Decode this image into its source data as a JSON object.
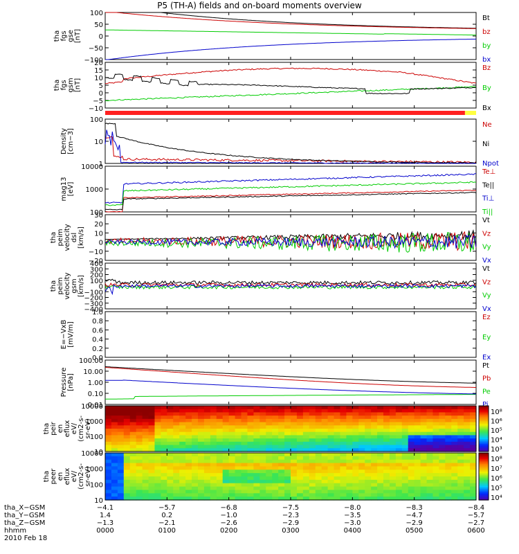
{
  "title": "P5 (TH-A) fields and on-board moments overview",
  "date_label": "2010 Feb 18",
  "colors": {
    "black": "#000000",
    "red": "#cc0000",
    "green": "#00cc00",
    "blue": "#0000cc",
    "bar_red": "#ff2020",
    "bar_yellow": "#ffff40"
  },
  "chart_data": [
    {
      "type": "line",
      "id": "fgs-gse",
      "ylabel": [
        "tha",
        "fgs",
        "gse",
        "[nT]"
      ],
      "ylim": [
        -100,
        100
      ],
      "yticks": [
        "100",
        "50",
        "0",
        "−50",
        "−100"
      ],
      "series": [
        {
          "name": "Bt",
          "color": "#000000"
        },
        {
          "name": "bz",
          "color": "#cc0000"
        },
        {
          "name": "by",
          "color": "#00cc00"
        },
        {
          "name": "bx",
          "color": "#0000cc"
        }
      ]
    },
    {
      "type": "line",
      "id": "fgs-gsm",
      "ylabel": [
        "tha",
        "fgs",
        "gsm",
        "[nT]"
      ],
      "ylim": [
        -10,
        20
      ],
      "yticks": [
        "20",
        "15",
        "10",
        "5",
        "0",
        "−5",
        "−10"
      ],
      "series": [
        {
          "name": "Bz",
          "color": "#cc0000"
        },
        {
          "name": "By",
          "color": "#00cc00"
        },
        {
          "name": "Bx",
          "color": "#000000"
        }
      ]
    },
    {
      "type": "line",
      "id": "density",
      "ylabel": [
        "Density",
        "[cm−3]"
      ],
      "ylim": [
        1,
        100
      ],
      "yscale": "log",
      "yticks": [
        "100",
        "10",
        "1"
      ],
      "series": [
        {
          "name": "Ne",
          "color": "#cc0000"
        },
        {
          "name": "Ni",
          "color": "#000000"
        },
        {
          "name": "Npot",
          "color": "#0000cc"
        }
      ]
    },
    {
      "type": "line",
      "id": "temperature",
      "ylabel": [
        "mag13",
        "[eV]"
      ],
      "ylim": [
        100,
        10000
      ],
      "yscale": "log",
      "yticks": [
        "10000",
        "1000",
        "100"
      ],
      "series": [
        {
          "name": "Te⊥",
          "color": "#cc0000"
        },
        {
          "name": "Te||",
          "color": "#000000"
        },
        {
          "name": "Ti⊥",
          "color": "#0000cc"
        },
        {
          "name": "Ti||",
          "color": "#00cc00"
        }
      ]
    },
    {
      "type": "line",
      "id": "peim-dsl",
      "ylabel": [
        "tha",
        "peim",
        "velocity",
        "dsl",
        "[km/s]"
      ],
      "ylim": [
        -20,
        30
      ],
      "yticks": [
        "30",
        "20",
        "10",
        "0",
        "−10",
        "−20"
      ],
      "series": [
        {
          "name": "Vt",
          "color": "#000000"
        },
        {
          "name": "Vz",
          "color": "#cc0000"
        },
        {
          "name": "Vy",
          "color": "#00cc00"
        },
        {
          "name": "Vx",
          "color": "#0000cc"
        }
      ]
    },
    {
      "type": "line",
      "id": "peim-gsm",
      "ylabel": [
        "tha",
        "peim",
        "velocity",
        "gsm",
        "[km/s]"
      ],
      "ylim": [
        -400,
        400
      ],
      "yticks": [
        "400",
        "300",
        "200",
        "100",
        "0",
        "−100",
        "−200",
        "−300",
        "−400"
      ],
      "series": [
        {
          "name": "Vt",
          "color": "#000000"
        },
        {
          "name": "Vz",
          "color": "#cc0000"
        },
        {
          "name": "Vy",
          "color": "#00cc00"
        },
        {
          "name": "Vx",
          "color": "#0000cc"
        }
      ]
    },
    {
      "type": "line",
      "id": "efield",
      "ylabel": [
        "E=−VxB",
        "[mV/m]"
      ],
      "ylim": [
        0,
        1
      ],
      "yticks": [
        "1.0",
        "0.8",
        "0.6",
        "0.4",
        "0.2",
        "0.0"
      ],
      "series": [
        {
          "name": "Ez",
          "color": "#cc0000"
        },
        {
          "name": "Ey",
          "color": "#00cc00"
        },
        {
          "name": "Ex",
          "color": "#0000cc"
        }
      ]
    },
    {
      "type": "line",
      "id": "pressure",
      "ylabel": [
        "Pressure",
        "[nPa]"
      ],
      "ylim": [
        0.01,
        100
      ],
      "yscale": "log",
      "yticks": [
        "100.00",
        "10.00",
        "1.00",
        "0.10",
        "0.01"
      ],
      "series": [
        {
          "name": "Pt",
          "color": "#000000"
        },
        {
          "name": "Pb",
          "color": "#cc0000"
        },
        {
          "name": "Pe",
          "color": "#00cc00"
        },
        {
          "name": "Pi",
          "color": "#0000cc"
        }
      ]
    },
    {
      "type": "heatmap",
      "id": "peir",
      "ylabel": [
        "tha",
        "peir",
        "en",
        "eflux",
        "eV/",
        "(cm2-s-",
        "sr-eV)"
      ],
      "ylim": [
        10,
        10000
      ],
      "yscale": "log",
      "yticks": [
        "10000",
        "1000",
        "100",
        "10"
      ],
      "colorbar": {
        "labels": [
          "10⁸",
          "10⁶",
          "10⁵",
          "10⁴",
          "10³"
        ]
      }
    },
    {
      "type": "heatmap",
      "id": "peer",
      "ylabel": [
        "tha",
        "peer",
        "en",
        "eflux",
        "eV/",
        "(cm2-s-",
        "sr-eV)"
      ],
      "ylim": [
        10,
        10000
      ],
      "yscale": "log",
      "yticks": [
        "10000",
        "1000",
        "100",
        "10"
      ],
      "colorbar": {
        "labels": [
          "10⁸",
          "10⁷",
          "10⁶",
          "10⁵",
          "10⁴"
        ]
      }
    }
  ],
  "ephemeris": [
    {
      "label": "tha_X−GSM",
      "values": [
        "−4.1",
        "−5.7",
        "−6.8",
        "−7.5",
        "−8.0",
        "−8.3",
        "−8.4"
      ]
    },
    {
      "label": "tha_Y−GSM",
      "values": [
        "1.4",
        "0.2",
        "−1.0",
        "−2.3",
        "−3.5",
        "−4.7",
        "−5.7"
      ]
    },
    {
      "label": "tha_Z−GSM",
      "values": [
        "−1.3",
        "−2.1",
        "−2.6",
        "−2.9",
        "−3.0",
        "−2.9",
        "−2.7"
      ]
    },
    {
      "label": "hhmm",
      "values": [
        "0000",
        "0100",
        "0200",
        "0300",
        "0400",
        "0500",
        "0600"
      ]
    }
  ]
}
